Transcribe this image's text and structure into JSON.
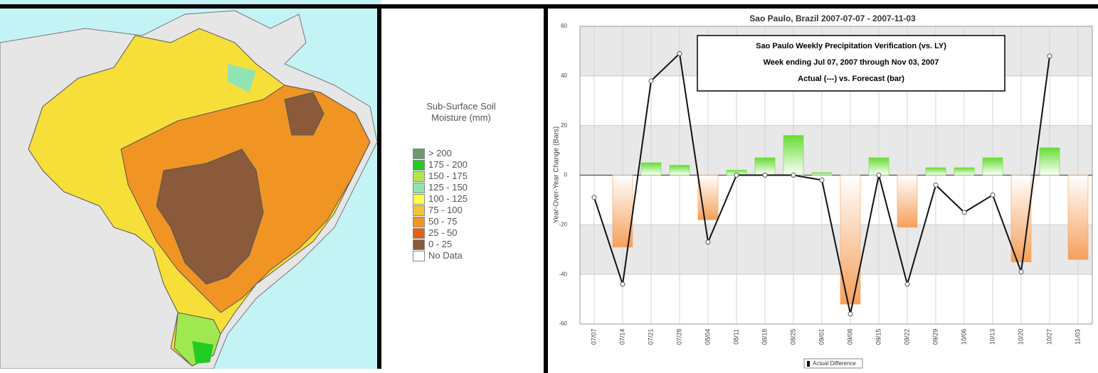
{
  "map_legend": {
    "title": "Sub-Surface Soil Moisture (mm)",
    "items": [
      {
        "label": "> 200",
        "color": "#6f9a6f"
      },
      {
        "label": "175 - 200",
        "color": "#22cc22"
      },
      {
        "label": "150 - 175",
        "color": "#b0e84a"
      },
      {
        "label": "125 - 150",
        "color": "#90e4b4"
      },
      {
        "label": "100 - 125",
        "color": "#ffff48"
      },
      {
        "label": "75 - 100",
        "color": "#f2c434"
      },
      {
        "label": "50 - 75",
        "color": "#f29424"
      },
      {
        "label": "25 - 50",
        "color": "#e85e12"
      },
      {
        "label": "0 - 25",
        "color": "#8b5a3a"
      },
      {
        "label": "No Data",
        "color": "#ffffff"
      }
    ]
  },
  "chart_data": {
    "type": "bar-line",
    "title": "Sao Paulo, Brazil 2007-07-07 - 2007-11-03",
    "annotation": [
      "Sao Paulo Weekly Precipitation Verification (vs. LY)",
      "Week ending Jul 07, 2007 through Nov 03, 2007",
      "Actual (---)  vs. Forecast (bar)"
    ],
    "y_label": "Year-Over-Year Change (Bars)",
    "categories": [
      "07/07",
      "07/14",
      "07/21",
      "07/28",
      "08/04",
      "08/11",
      "08/18",
      "08/25",
      "09/01",
      "09/08",
      "09/15",
      "09/22",
      "09/29",
      "10/06",
      "10/13",
      "10/20",
      "10/27",
      "11/03"
    ],
    "series": [
      {
        "kind": "bar",
        "positive_color": "#66dd33",
        "negative_color": "#f5a05a",
        "values": [
          0,
          -29,
          5,
          4,
          -18,
          2,
          7,
          16,
          1,
          -52,
          7,
          -21,
          3,
          3,
          7,
          -35,
          11,
          -34
        ]
      },
      {
        "kind": "line",
        "name": "Actual Difference",
        "color": "#111111",
        "values": [
          -9,
          -44,
          38,
          49,
          -27,
          0,
          0,
          0,
          -2,
          -56,
          0,
          -44,
          -4,
          -15,
          -8,
          -39,
          48,
          null
        ]
      }
    ],
    "ylim": [
      -60,
      60
    ],
    "yticks": [
      -60,
      -40,
      -20,
      0,
      20,
      40,
      60
    ],
    "grid": true
  }
}
